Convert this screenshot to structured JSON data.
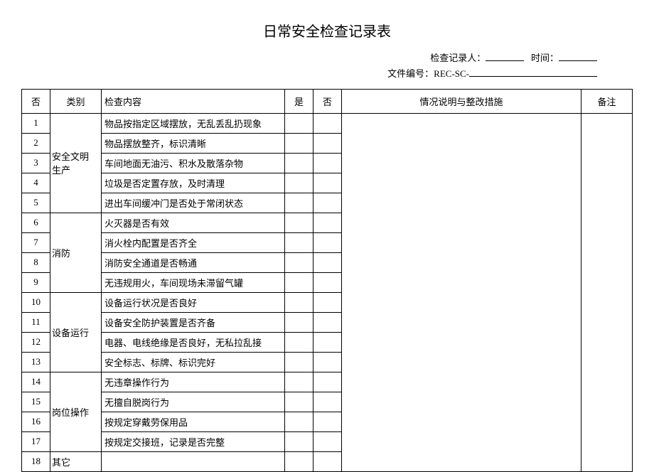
{
  "title": "日常安全检查记录表",
  "header": {
    "inspector_label": "检查记录人：",
    "time_label": "时间：",
    "doc_no_label": "文件编号：",
    "doc_no_value": "REC-SC-"
  },
  "columns": {
    "no": "否",
    "category": "类别",
    "content": "检查内容",
    "yes": "是",
    "desc": "情况说明与整改措施",
    "note": "备注"
  },
  "rows": [
    {
      "no": "1",
      "content": "物品按指定区域摆放，无乱丢乱扔现象"
    },
    {
      "no": "2",
      "content": "物品摆放整齐，标识清晰"
    },
    {
      "no": "3",
      "content": "车间地面无油污、积水及散落杂物"
    },
    {
      "no": "4",
      "content": "垃圾是否定置存放，及时清理"
    },
    {
      "no": "5",
      "content": "进出车间缓冲门是否处于常闭状态"
    },
    {
      "no": "6",
      "content": "火灭器是否有效"
    },
    {
      "no": "7",
      "content": "消火栓内配置是否齐全"
    },
    {
      "no": "8",
      "content": "消防安全通道是否畅通"
    },
    {
      "no": "9",
      "content": "无违规用火，车间现场未滞留气罐"
    },
    {
      "no": "10",
      "content": "设备运行状况是否良好"
    },
    {
      "no": "11",
      "content": "设备安全防护装置是否齐备"
    },
    {
      "no": "12",
      "content": "电器、电线绝缘是否良好，无私拉乱接"
    },
    {
      "no": "13",
      "content": "安全标志、标牌、标识完好"
    },
    {
      "no": "14",
      "content": "无违章操作行为"
    },
    {
      "no": "15",
      "content": "无擅自脱岗行为"
    },
    {
      "no": "16",
      "content": "按规定穿戴劳保用品"
    },
    {
      "no": "17",
      "content": "按规定交接班，记录是否完整"
    },
    {
      "no": "18",
      "content": ""
    }
  ],
  "categories": {
    "cat1": {
      "label": "安全文明生产",
      "start": 0,
      "span": 5
    },
    "cat2": {
      "label": "消防",
      "start": 5,
      "span": 4
    },
    "cat3": {
      "label": "设备运行",
      "start": 9,
      "span": 4
    },
    "cat4": {
      "label": "岗位操作",
      "start": 13,
      "span": 4
    },
    "cat5": {
      "label": "其它",
      "start": 17,
      "span": 1
    }
  }
}
